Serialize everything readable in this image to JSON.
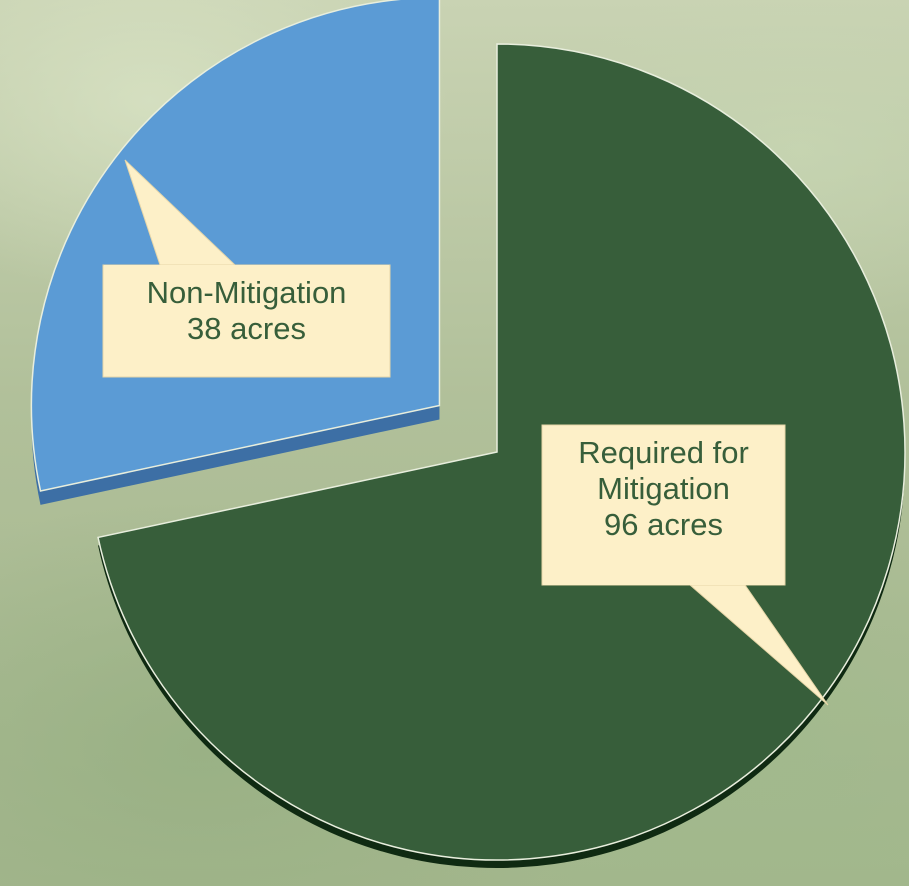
{
  "chart_data": {
    "type": "pie",
    "categories": [
      "Required for Mitigation",
      "Non-Mitigation"
    ],
    "values": [
      96,
      38
    ],
    "value_labels": [
      "96 acres",
      "38 acres"
    ],
    "colors": [
      "#375e3a",
      "#5b9bd5"
    ],
    "explode": [
      false,
      true
    ]
  }
}
